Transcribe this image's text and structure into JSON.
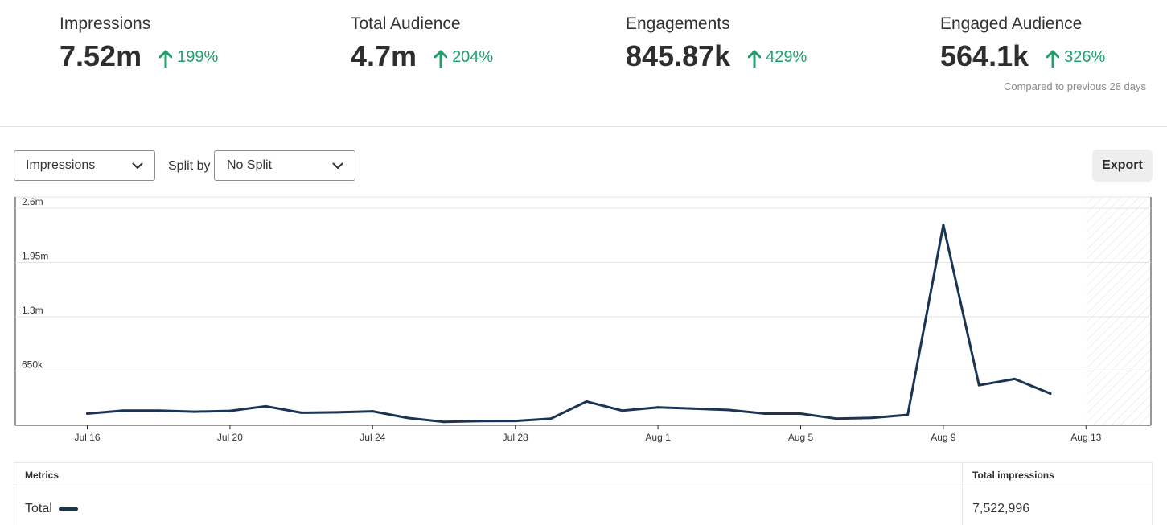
{
  "kpis": [
    {
      "label": "Impressions",
      "value": "7.52m",
      "change": "199%"
    },
    {
      "label": "Total Audience",
      "value": "4.7m",
      "change": "204%"
    },
    {
      "label": "Engagements",
      "value": "845.87k",
      "change": "429%"
    },
    {
      "label": "Engaged Audience",
      "value": "564.1k",
      "change": "326%"
    }
  ],
  "compare_note": "Compared to previous 28 days",
  "controls": {
    "metric_select": "Impressions",
    "split_label": "Split by",
    "split_select": "No Split",
    "export_label": "Export"
  },
  "colors": {
    "line": "#1b3454",
    "positive": "#22a06b",
    "grid": "#e6e6e6"
  },
  "chart_data": {
    "type": "line",
    "x": [
      "Jul 15",
      "Jul 16",
      "Jul 17",
      "Jul 18",
      "Jul 19",
      "Jul 20",
      "Jul 21",
      "Jul 22",
      "Jul 23",
      "Jul 24",
      "Jul 25",
      "Jul 26",
      "Jul 27",
      "Jul 28",
      "Jul 29",
      "Jul 30",
      "Jul 31",
      "Aug 1",
      "Aug 2",
      "Aug 3",
      "Aug 4",
      "Aug 5",
      "Aug 6",
      "Aug 7",
      "Aug 8",
      "Aug 9",
      "Aug 10",
      "Aug 11",
      "Aug 12",
      "Aug 13",
      "Aug 14"
    ],
    "series": [
      {
        "name": "Total",
        "values": [
          null,
          140000,
          175000,
          175000,
          163000,
          172000,
          228000,
          150000,
          155000,
          168000,
          87000,
          40000,
          50000,
          52000,
          80000,
          285000,
          175000,
          215000,
          200000,
          183000,
          140000,
          140000,
          80000,
          90000,
          125000,
          2400000,
          480000,
          555000,
          380000,
          null,
          null
        ]
      }
    ],
    "x_ticks": [
      "Jul 16",
      "Jul 20",
      "Jul 24",
      "Jul 28",
      "Aug 1",
      "Aug 5",
      "Aug 9",
      "Aug 13"
    ],
    "y_ticks": [
      "650k",
      "1.3m",
      "1.95m",
      "2.6m"
    ],
    "ylim": [
      0,
      2600000
    ],
    "partial_period_shaded": [
      "Aug 13",
      "Aug 14"
    ],
    "grid": true
  },
  "table": {
    "headers": [
      "Metrics",
      "Total impressions"
    ],
    "rows": [
      {
        "label": "Total",
        "value": "7,522,996"
      }
    ]
  }
}
